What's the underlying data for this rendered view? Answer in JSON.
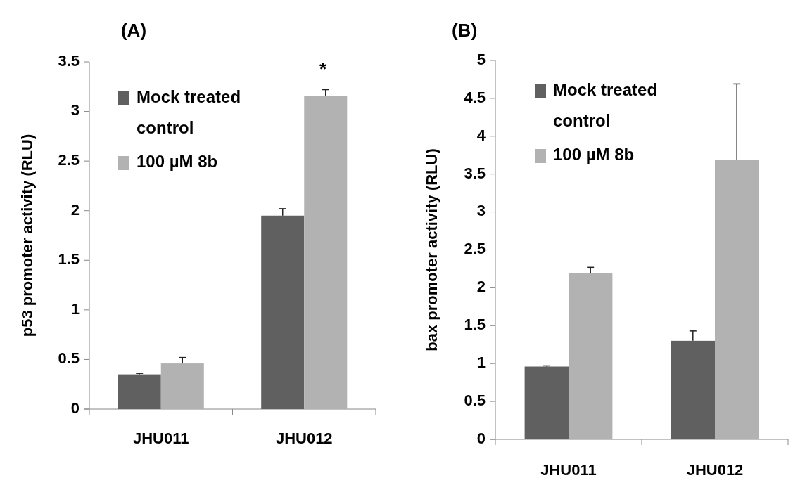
{
  "chart_data": [
    {
      "type": "bar",
      "title": "(A)",
      "ylabel": "p53  promoter activity (RLU)",
      "categories": [
        "JHU011",
        "JHU012"
      ],
      "series": [
        {
          "name": "Mock treated control",
          "color": "#606060",
          "values": [
            0.35,
            1.95
          ],
          "errors": [
            [
              0.35,
              0.36
            ],
            [
              1.95,
              2.02
            ]
          ]
        },
        {
          "name": "100 µM 8b",
          "color": "#b2b2b2",
          "values": [
            0.46,
            3.16
          ],
          "errors": [
            [
              0.46,
              0.52
            ],
            [
              3.16,
              3.22
            ]
          ]
        }
      ],
      "ylim": [
        0,
        3.5
      ],
      "yticks": [
        0,
        0.5,
        1,
        1.5,
        2,
        2.5,
        3,
        3.5
      ],
      "annotations": [
        "*"
      ],
      "legend": "top left",
      "grid": false
    },
    {
      "type": "bar",
      "title": "(B)",
      "ylabel": "bax promoter activity (RLU)",
      "categories": [
        "JHU011",
        "JHU012"
      ],
      "series": [
        {
          "name": "Mock treated control",
          "color": "#606060",
          "values": [
            0.96,
            1.3
          ],
          "errors": [
            [
              0.96,
              0.97
            ],
            [
              1.3,
              1.43
            ]
          ]
        },
        {
          "name": "100 µM 8b",
          "color": "#b2b2b2",
          "values": [
            2.19,
            3.69
          ],
          "errors": [
            [
              2.19,
              2.27
            ],
            [
              3.69,
              4.69
            ]
          ]
        }
      ],
      "ylim": [
        0,
        5
      ],
      "yticks": [
        0,
        0.5,
        1,
        1.5,
        2,
        2.5,
        3,
        3.5,
        4,
        4.5,
        5
      ],
      "legend": "top left",
      "grid": false
    }
  ]
}
